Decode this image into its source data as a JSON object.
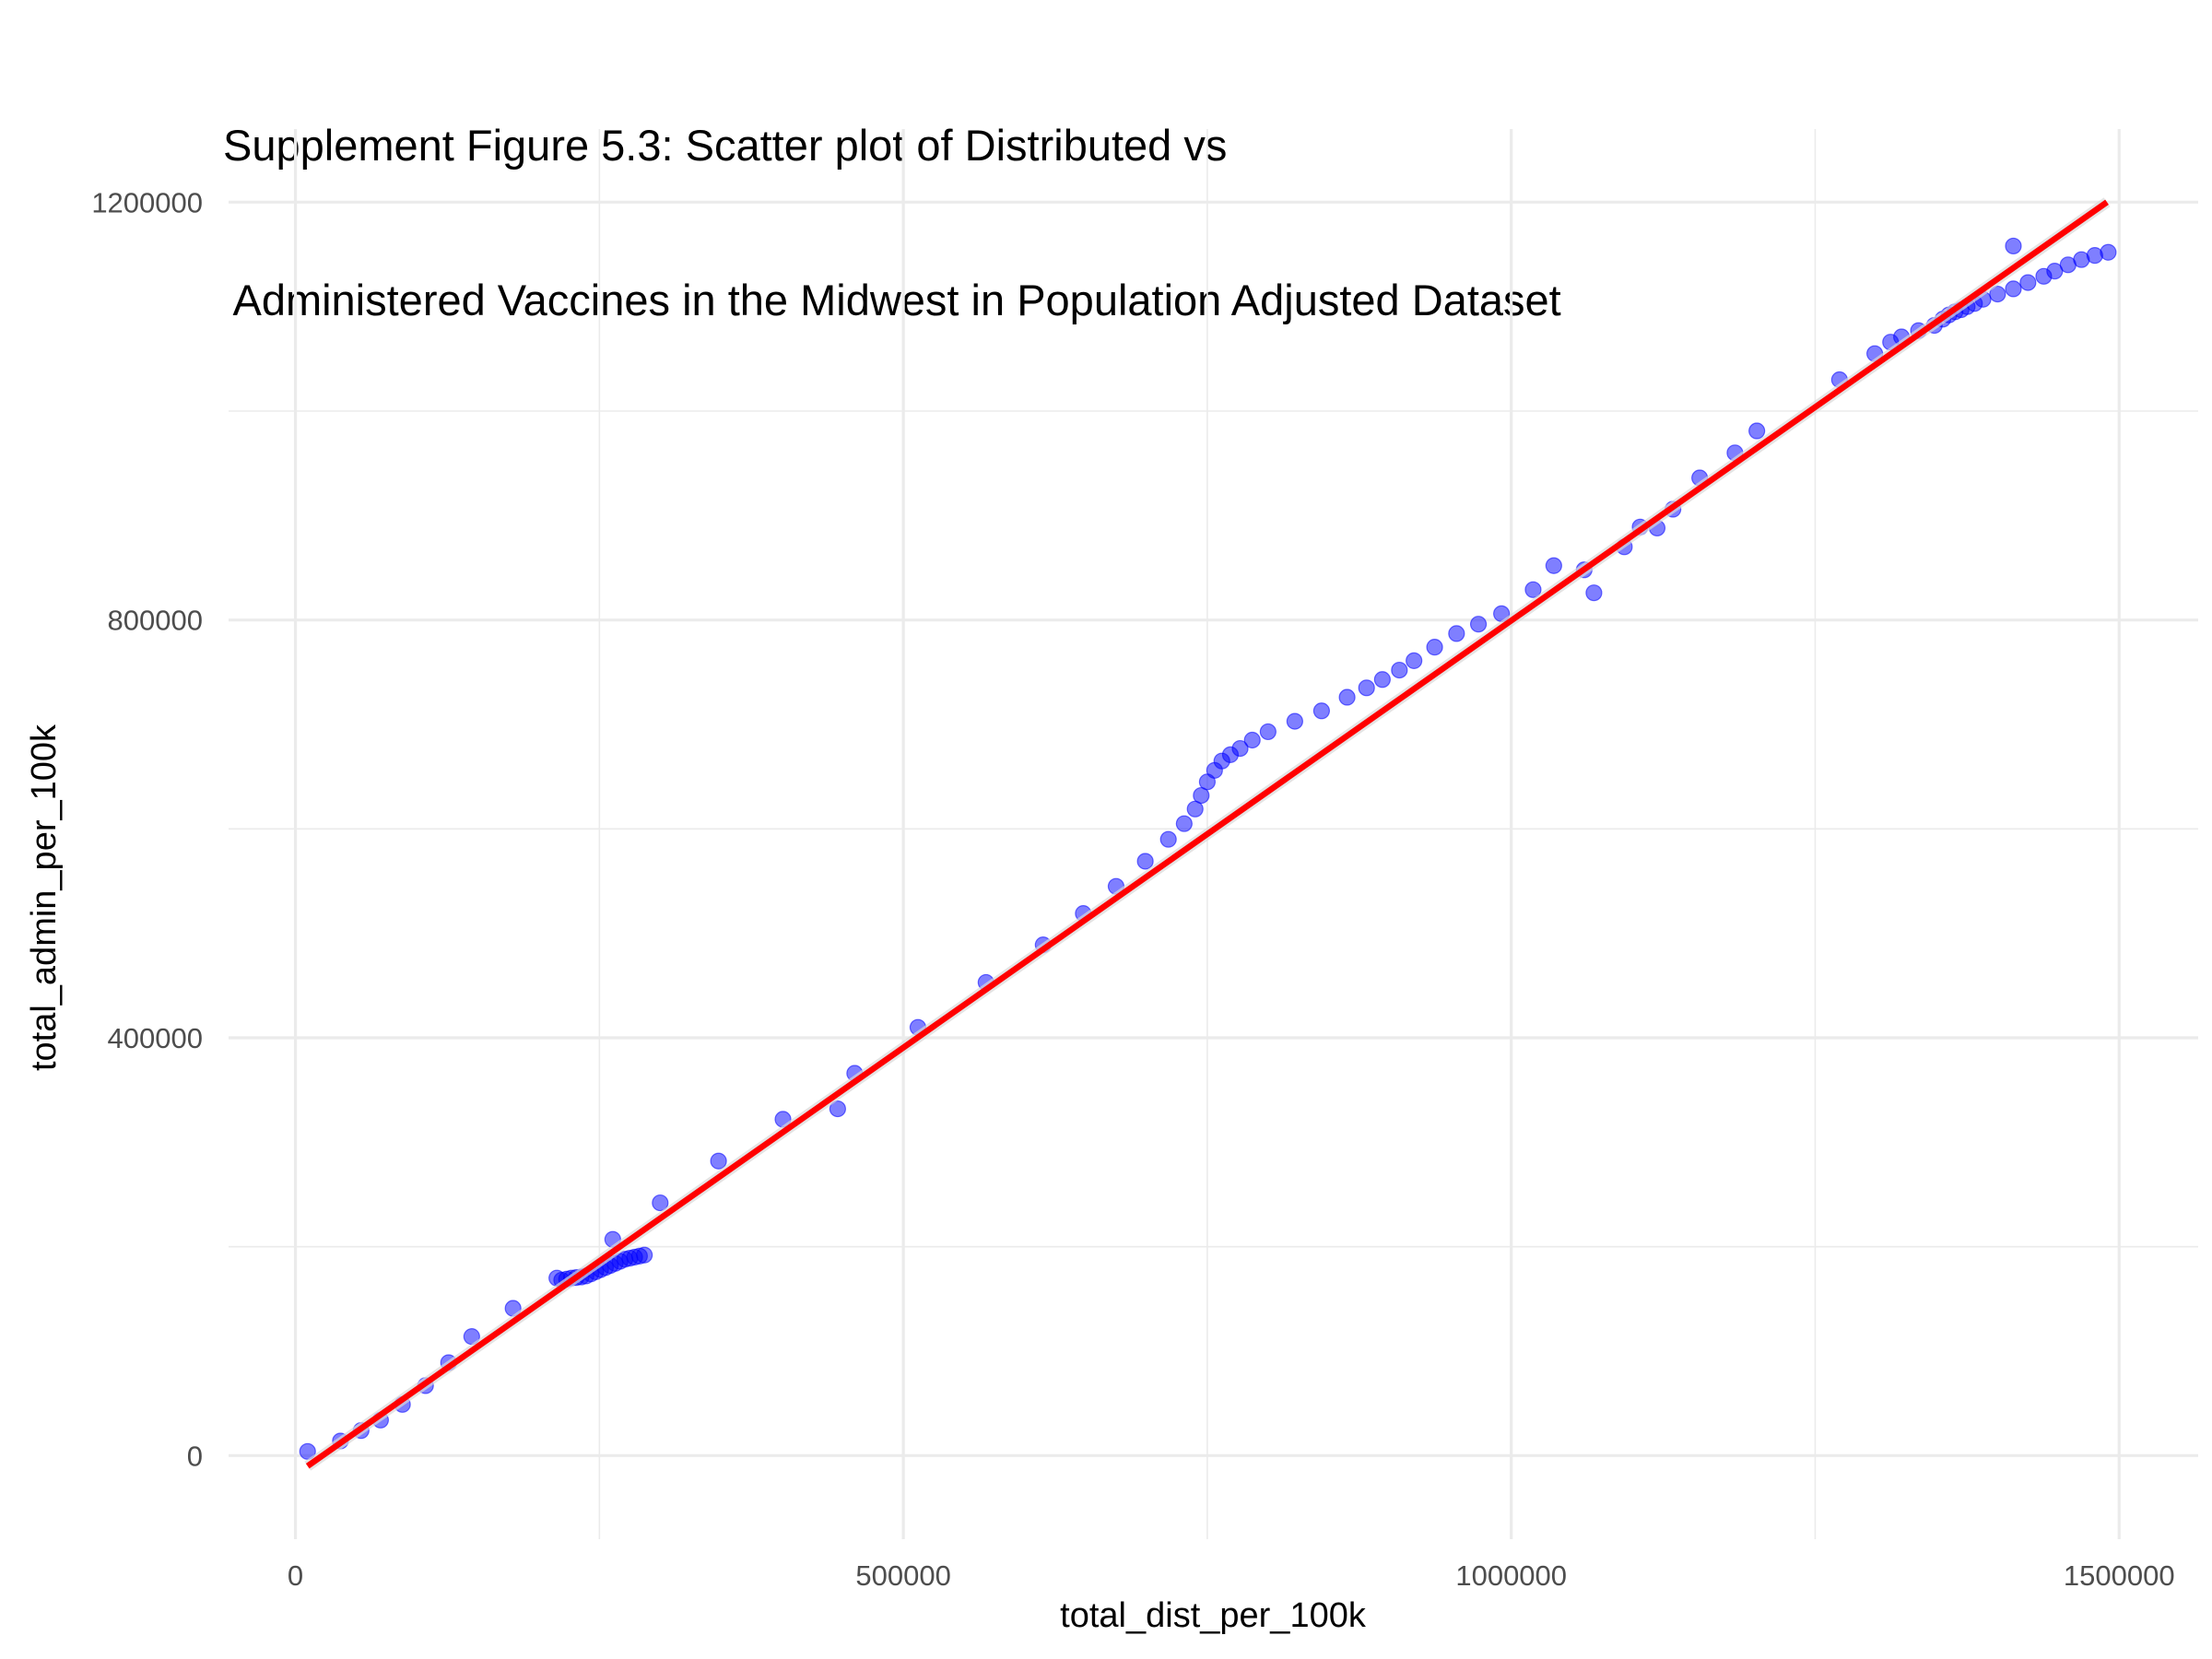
{
  "chart_data": {
    "type": "scatter",
    "title_lines": [
      "Supplement Figure 5.3: Scatter plot of Distributed vs",
      " Administered Vaccines in the Midwest in Population Adjusted Dataset"
    ],
    "xlabel": "total_dist_per_100k",
    "ylabel": "total_admin_per_100k",
    "xlim": [
      -55000,
      1565000
    ],
    "ylim": [
      -80000,
      1270000
    ],
    "x_ticks": [
      0,
      500000,
      1000000,
      1500000
    ],
    "x_tick_labels": [
      "0",
      "500000",
      "1000000",
      "1500000"
    ],
    "x_minor_ticks": [
      250000,
      750000,
      1250000
    ],
    "y_ticks": [
      0,
      400000,
      800000,
      1200000
    ],
    "y_tick_labels": [
      "0",
      "400000",
      "800000",
      "1200000"
    ],
    "y_minor_ticks": [
      200000,
      600000,
      1000000
    ],
    "grid": true,
    "legend": "none",
    "point_color": "#0000ff",
    "point_opacity": 0.5,
    "fit_line_color": "#ff0000",
    "fit_line": {
      "x": [
        10000,
        1490000
      ],
      "y": [
        -10000,
        1200000
      ]
    },
    "series": [
      {
        "values_x": [
          10000,
          37000,
          54000,
          70000,
          88000,
          107000,
          126000,
          145000,
          179000,
          215000,
          219000,
          223000,
          227000,
          231000,
          235000,
          239000,
          243000,
          247000,
          251000,
          255000,
          259000,
          263000,
          267000,
          271000,
          275000,
          279000,
          283000,
          287000,
          261000,
          300000,
          348000,
          401000,
          446000,
          460000,
          512000,
          568000,
          615000,
          648000,
          675000,
          699000,
          718000,
          731000,
          740000,
          745000,
          750000,
          756000,
          762000,
          769000,
          777000,
          787000,
          800000,
          822000,
          844000,
          865000,
          881000,
          894000,
          908000,
          920000,
          937000,
          955000,
          973000,
          992000,
          1018000,
          1035000,
          1060000,
          1068000,
          1093000,
          1106000,
          1120000,
          1133000,
          1155000,
          1184000,
          1202000,
          1270000,
          1299000,
          1312000,
          1321000,
          1335000,
          1348000,
          1355000,
          1360000,
          1365000,
          1370000,
          1375000,
          1381000,
          1388000,
          1400000,
          1413000,
          1425000,
          1438000,
          1447000,
          1458000,
          1469000,
          1480000,
          1491000,
          1413000
        ],
        "values_y": [
          4000,
          14000,
          24000,
          34000,
          49000,
          67000,
          89000,
          114000,
          141000,
          170000,
          168000,
          169000,
          170000,
          170500,
          171000,
          172000,
          174000,
          176000,
          178000,
          180000,
          182000,
          184000,
          186000,
          188000,
          189000,
          190000,
          191000,
          192000,
          207000,
          242000,
          282000,
          322000,
          332000,
          366000,
          410000,
          453000,
          489000,
          519000,
          545000,
          569000,
          590000,
          605000,
          619000,
          632000,
          645000,
          656000,
          665000,
          671000,
          677000,
          685000,
          693000,
          703000,
          713000,
          726000,
          735000,
          743000,
          752000,
          761000,
          774000,
          787000,
          796000,
          806000,
          829000,
          852000,
          848000,
          826000,
          870000,
          889000,
          888000,
          906000,
          936000,
          960000,
          981000,
          1030000,
          1055000,
          1066000,
          1071000,
          1077000,
          1082000,
          1088000,
          1092000,
          1095000,
          1097000,
          1100000,
          1103000,
          1107000,
          1112000,
          1117000,
          1123000,
          1129000,
          1134000,
          1140000,
          1145000,
          1149000,
          1152000,
          1158000
        ]
      }
    ]
  }
}
